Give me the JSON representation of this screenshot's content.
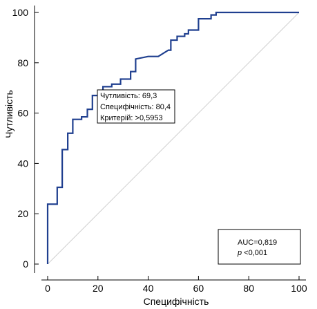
{
  "chart_data": {
    "type": "line",
    "title": "",
    "xlabel": "Специфічність",
    "ylabel": "Чутливість",
    "xlim": [
      0,
      100
    ],
    "ylim": [
      0,
      100
    ],
    "x_ticks": [
      "0",
      "20",
      "40",
      "60",
      "80",
      "100"
    ],
    "y_ticks": [
      "0",
      "20",
      "40",
      "60",
      "80",
      "100"
    ],
    "grid": false,
    "legend": "none",
    "series": [
      {
        "kind": "roc-curve",
        "color": "#1f3f8f",
        "x": [
          0,
          0,
          3.8,
          3.8,
          5.8,
          5.8,
          8,
          8,
          10,
          10,
          13.5,
          13.5,
          15.8,
          15.8,
          17.8,
          17.8,
          22,
          22,
          25.5,
          25.5,
          29,
          29,
          33,
          33,
          35,
          35,
          40,
          44,
          48,
          49,
          49,
          51.5,
          51.5,
          54.5,
          54.5,
          56,
          56,
          60,
          60,
          65,
          65,
          67,
          67,
          100
        ],
        "y": [
          0,
          23.8,
          23.8,
          30.5,
          30.5,
          45.5,
          45.5,
          52,
          52,
          57.5,
          57.5,
          58.5,
          58.5,
          61.5,
          61.5,
          67,
          67,
          70.5,
          70.5,
          71.5,
          71.5,
          73.5,
          73.5,
          76.5,
          76.5,
          81.5,
          82.5,
          82.5,
          85,
          85,
          89,
          89,
          90.5,
          90.5,
          91.5,
          91.5,
          93,
          93,
          97.5,
          97.5,
          99,
          99,
          100,
          100
        ]
      },
      {
        "kind": "reference-diagonal",
        "color": "#d0d0d0",
        "x": [
          0,
          100
        ],
        "y": [
          0,
          100
        ]
      }
    ],
    "annotations": {
      "criterion_box": {
        "lines": [
          "Чутливість: 69,3",
          "Специфічність: 80,4",
          "Критерій: >0,5953"
        ]
      },
      "auc_box": {
        "auc": "AUC=0,819",
        "p_symbol": "p",
        "p_rest": " <0,001"
      }
    }
  }
}
